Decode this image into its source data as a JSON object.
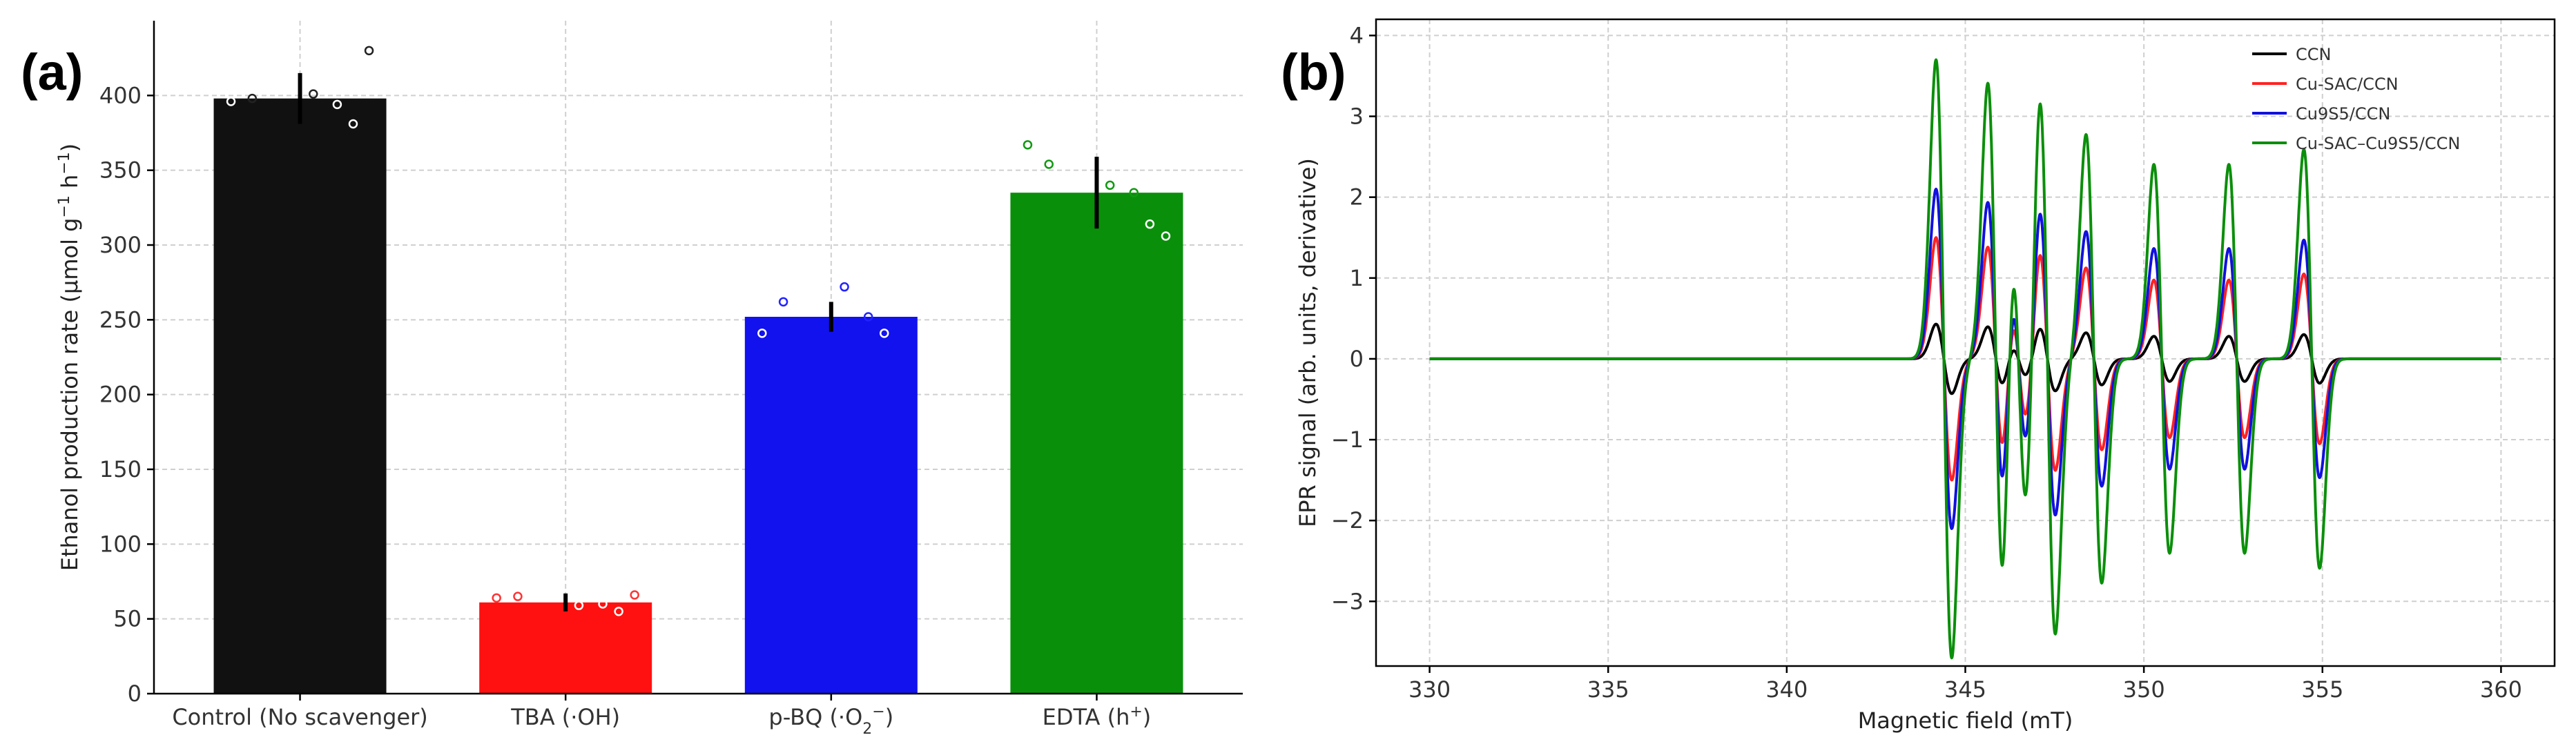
{
  "chart_data": [
    {
      "panel": "(a)",
      "type": "bar",
      "ylabel_text": "Ethanol production rate (μmol g",
      "ylabel_sup1": "−1",
      "ylabel_mid": " h",
      "ylabel_sup2": "−1",
      "ylabel_end": ")",
      "xlabel": "",
      "ylim": [
        0,
        450
      ],
      "yticks": [
        0,
        50,
        100,
        150,
        200,
        250,
        300,
        350,
        400
      ],
      "grid": true,
      "categories": [
        {
          "base": "Control (No scavenger)"
        },
        {
          "base": "TBA (·OH)"
        },
        {
          "base": "p-BQ (·O",
          "sub": "2",
          "sup": "−",
          "tail": ")"
        },
        {
          "base": "EDTA (h",
          "sup": "+",
          "tail": ")"
        }
      ],
      "values": [
        398,
        61,
        252,
        335
      ],
      "errors": [
        17,
        6,
        10,
        24
      ],
      "colors": [
        "#111111",
        "#ff1111",
        "#1212ee",
        "#0a8f0a"
      ],
      "marker_colors": [
        "#222222",
        "#ff3333",
        "#2222ff",
        "#119911"
      ],
      "points": [
        [
          396,
          398,
          401,
          394,
          381,
          430
        ],
        [
          64,
          65,
          59,
          60,
          55,
          66
        ],
        [
          241,
          262,
          272,
          252,
          241
        ],
        [
          367,
          354,
          340,
          335,
          314,
          306
        ]
      ]
    },
    {
      "panel": "(b)",
      "type": "line",
      "xlabel": "Magnetic field (mT)",
      "ylabel": "EPR signal (arb. units, derivative)",
      "xlim": [
        328.5,
        361.5
      ],
      "ylim": [
        -3.8,
        4.2
      ],
      "xticks": [
        330,
        335,
        340,
        345,
        350,
        355,
        360
      ],
      "yticks": [
        -3,
        -2,
        -1,
        0,
        1,
        2,
        3,
        4
      ],
      "grid": true,
      "legend_position": "top-right",
      "x_range": [
        330,
        360
      ],
      "line_centers_mT": [
        344.4,
        345.85,
        346.5,
        347.3,
        348.6,
        350.5,
        352.6,
        354.7
      ],
      "line_relative_intensity": [
        1.0,
        0.92,
        0.55,
        0.92,
        0.75,
        0.65,
        0.65,
        0.7
      ],
      "series": [
        {
          "name": "CCN",
          "color": "#000000",
          "peak_amplitude": 0.43
        },
        {
          "name": "Cu-SAC/CCN",
          "color": "#ff2222",
          "peak_amplitude": 1.5
        },
        {
          "name": "Cu9S5/CCN",
          "color": "#1111dd",
          "peak_amplitude": 2.1
        },
        {
          "name": "Cu-SAC–Cu9S5/CCN",
          "color": "#0b8f0b",
          "peak_amplitude": 3.7
        }
      ]
    }
  ]
}
